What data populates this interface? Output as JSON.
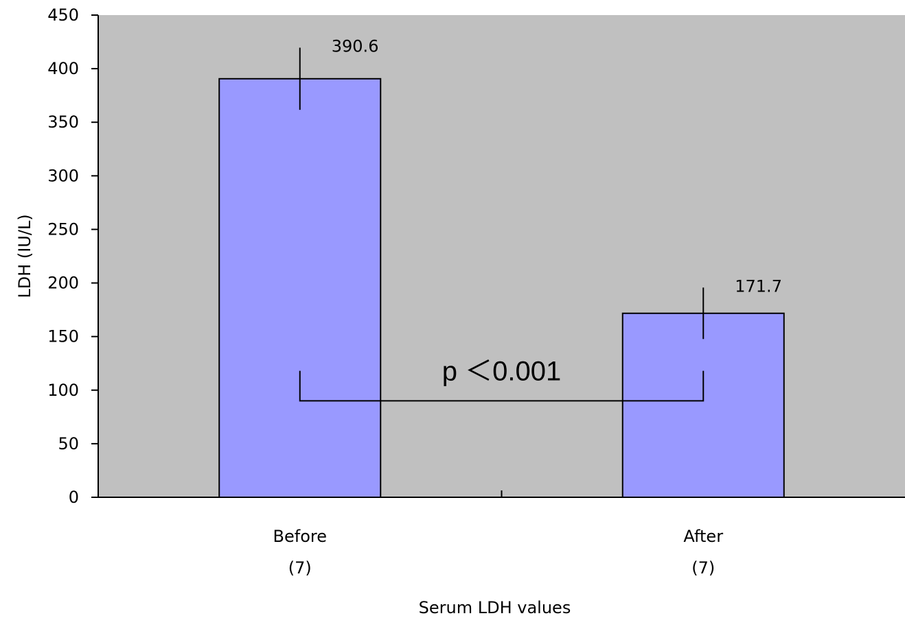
{
  "chart_data": {
    "type": "bar",
    "categories": [
      "Before",
      "After"
    ],
    "category_sublabels": [
      "(7)",
      "(7)"
    ],
    "values": [
      390.6,
      171.7
    ],
    "data_labels": [
      "390.6",
      "171.7"
    ],
    "error": [
      29,
      24
    ],
    "xlabel": "Serum LDH values",
    "ylabel": "LDH (IU/L)",
    "ylim": [
      0,
      450
    ],
    "yticks": [
      0,
      50,
      100,
      150,
      200,
      250,
      300,
      350,
      400,
      450
    ],
    "grid": false,
    "legend": "none",
    "annotation": {
      "text": "p ＜0.001",
      "bracket_y": 90,
      "bracket_tick_top": 118
    },
    "colors": {
      "plot_background": "#c0c0c0",
      "bar_fill": "#9999ff",
      "bar_stroke": "#000000"
    }
  }
}
